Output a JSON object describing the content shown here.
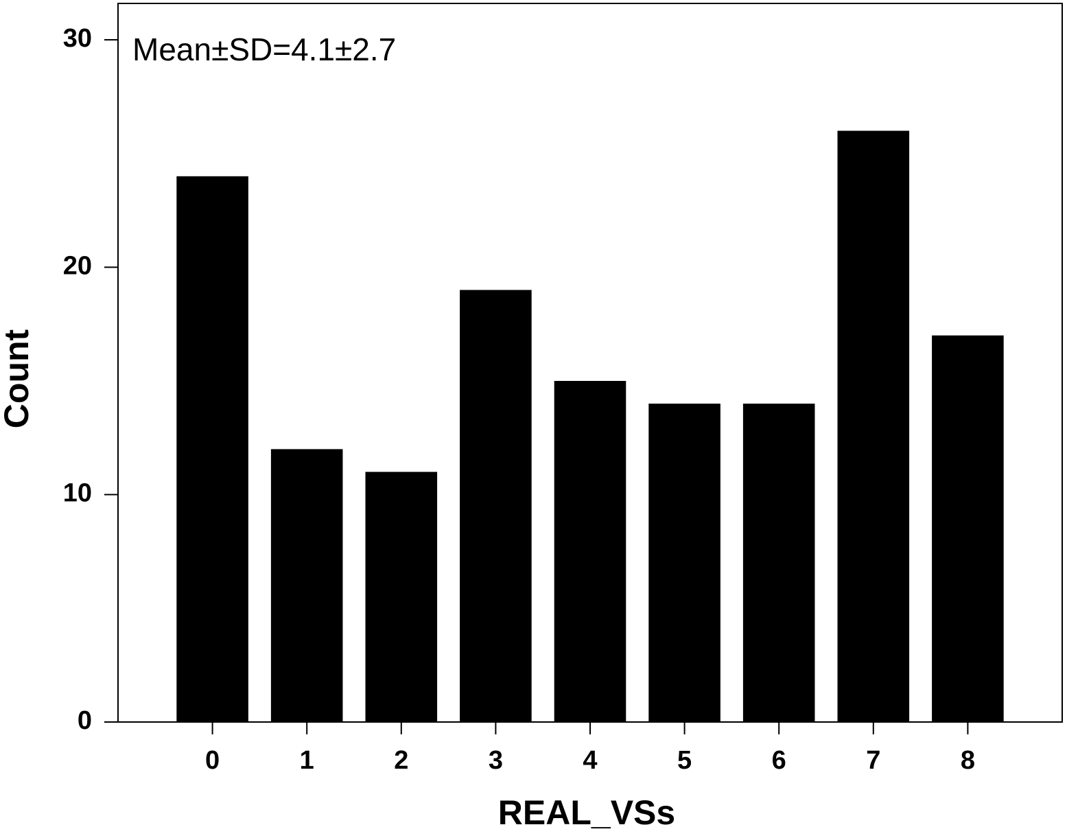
{
  "chart_data": {
    "type": "bar",
    "annotation": "Mean±SD=4.1±2.7",
    "x_label": "REAL_VSs",
    "y_label": "Count",
    "x": [
      0,
      1,
      2,
      3,
      4,
      5,
      6,
      7,
      8
    ],
    "values": [
      24,
      12,
      11,
      19,
      15,
      14,
      14,
      26,
      17
    ],
    "color": "#000000",
    "xlim": [
      -1,
      9
    ],
    "xticks": [
      0,
      1,
      2,
      3,
      4,
      5,
      6,
      7,
      8
    ],
    "ylim": [
      0,
      31.6
    ],
    "yticks": [
      0,
      10,
      20,
      30
    ],
    "grid": false
  }
}
